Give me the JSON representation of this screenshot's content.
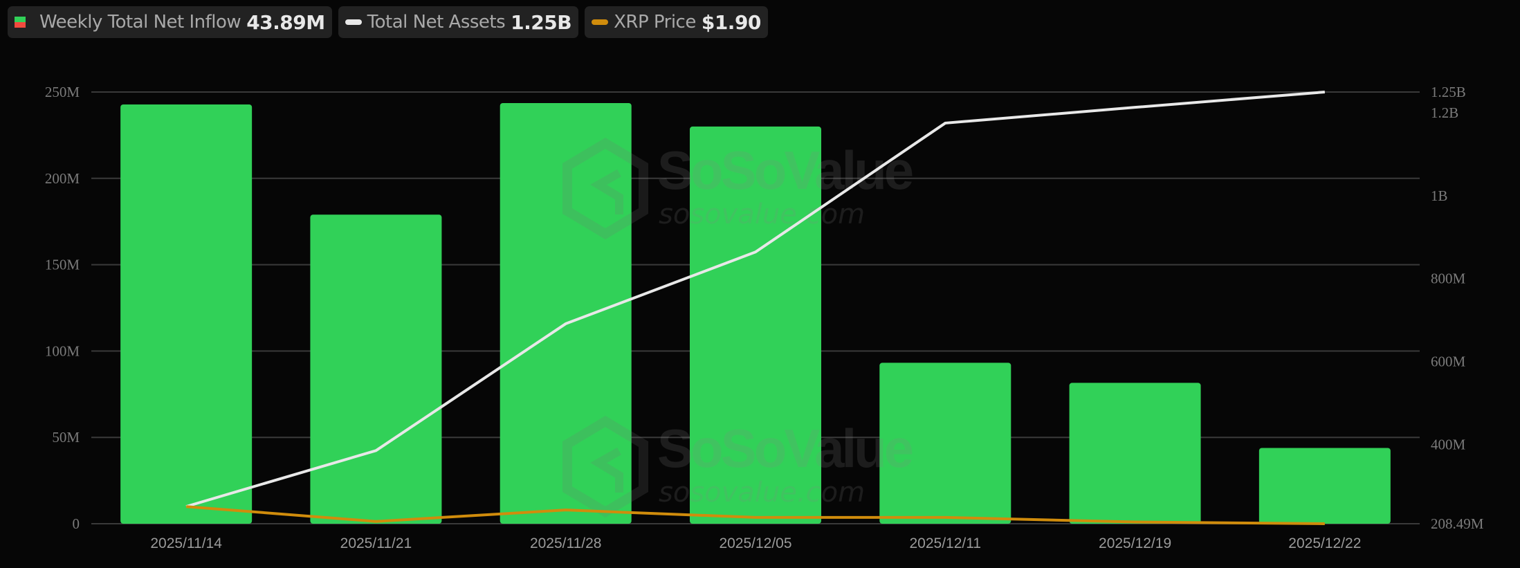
{
  "legend": {
    "items": [
      {
        "label": "Weekly Total Net Inflow",
        "value": "43.89M",
        "icon": "bar-icon",
        "colors": [
          "#31d158",
          "#f14b3e"
        ]
      },
      {
        "label": "Total Net Assets",
        "value": "1.25B",
        "icon": "line-icon",
        "color": "#e8e8e8"
      },
      {
        "label": "XRP Price",
        "value": "$1.90",
        "icon": "line-icon",
        "color": "#d08c0c"
      }
    ]
  },
  "watermark": {
    "brand": "SoSoValue",
    "url": "sosovalue.com"
  },
  "chart_data": {
    "type": "bar",
    "title": "",
    "categories": [
      "2025/11/14",
      "2025/11/21",
      "2025/11/28",
      "2025/12/05",
      "2025/12/11",
      "2025/12/19",
      "2025/12/22"
    ],
    "series": [
      {
        "name": "Weekly Total Net Inflow",
        "type": "bar",
        "axis": "left",
        "color": "#31d158",
        "values": [
          242.8,
          179.0,
          243.6,
          230.0,
          93.2,
          81.6,
          43.89
        ],
        "unit": "M"
      },
      {
        "name": "Total Net Assets",
        "type": "line",
        "axis": "right",
        "color": "#e8e8e8",
        "values": [
          250,
          385,
          691,
          864,
          1175,
          1213,
          1250
        ],
        "unit": "M"
      },
      {
        "name": "XRP Price",
        "type": "line",
        "axis": "hidden",
        "color": "#d08c0c",
        "values": [
          2.2,
          1.94,
          2.14,
          2.01,
          2.01,
          1.93,
          1.9
        ],
        "unit": "$"
      }
    ],
    "left_axis": {
      "ticks": [
        "0",
        "50M",
        "100M",
        "150M",
        "200M",
        "250M"
      ],
      "range": [
        0,
        250
      ]
    },
    "right_axis": {
      "ticks": [
        "208.49M",
        "400M",
        "600M",
        "800M",
        "1B",
        "1.2B",
        "1.25B"
      ],
      "range": [
        208.49,
        1250
      ]
    },
    "xlabel": "",
    "ylabel": "",
    "grid": true,
    "legend_position": "top-left"
  }
}
